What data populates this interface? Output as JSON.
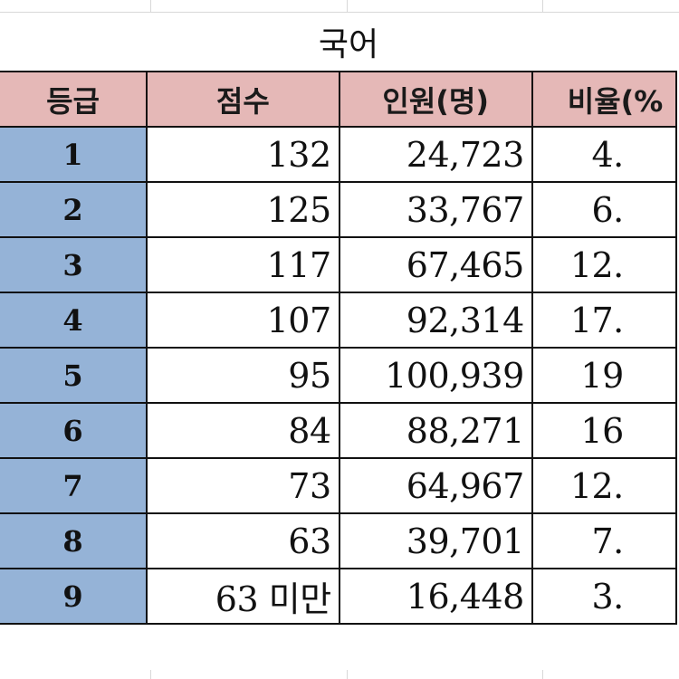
{
  "sheet_title": "국어",
  "headers": {
    "grade": "등급",
    "score": "점수",
    "count": "인원(명)",
    "rate": "비율(%"
  },
  "rows": [
    {
      "grade": "1",
      "score": "132",
      "count": "24,723",
      "rate": "4."
    },
    {
      "grade": "2",
      "score": "125",
      "count": "33,767",
      "rate": "6."
    },
    {
      "grade": "3",
      "score": "117",
      "count": "67,465",
      "rate": "12."
    },
    {
      "grade": "4",
      "score": "107",
      "count": "92,314",
      "rate": "17."
    },
    {
      "grade": "5",
      "score": "95",
      "count": "100,939",
      "rate": "19"
    },
    {
      "grade": "6",
      "score": "84",
      "count": "88,271",
      "rate": "16"
    },
    {
      "grade": "7",
      "score": "73",
      "count": "64,967",
      "rate": "12."
    },
    {
      "grade": "8",
      "score": "63",
      "count": "39,701",
      "rate": "7."
    },
    {
      "grade": "9",
      "score": "63 미만",
      "count": "16,448",
      "rate": "3."
    }
  ],
  "colors": {
    "header_fill": "#e5b8b7",
    "grade_fill": "#95b3d7",
    "border": "#111111",
    "gridline": "#d8d8d8"
  }
}
